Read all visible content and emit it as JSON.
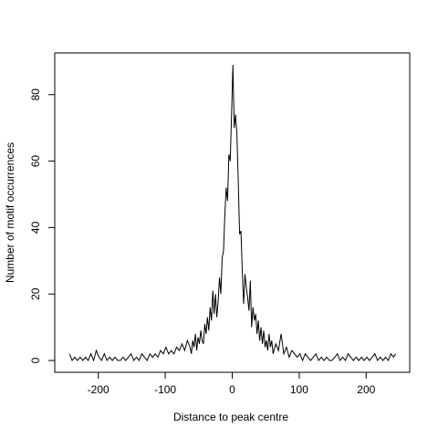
{
  "chart_data": {
    "type": "line",
    "xlabel": "Distance to peak centre",
    "ylabel": "Number of motif occurrences",
    "x": [
      -243,
      -239,
      -235,
      -231,
      -227,
      -223,
      -219,
      -215,
      -211,
      -207,
      -203,
      -199,
      -195,
      -191,
      -187,
      -183,
      -179,
      -175,
      -171,
      -167,
      -163,
      -159,
      -155,
      -151,
      -147,
      -143,
      -139,
      -135,
      -131,
      -127,
      -123,
      -119,
      -115,
      -111,
      -107,
      -103,
      -99,
      -95,
      -91,
      -87,
      -83,
      -79,
      -75,
      -71,
      -67,
      -63,
      -61,
      -59,
      -57,
      -55,
      -53,
      -51,
      -49,
      -47,
      -45,
      -43,
      -41,
      -39,
      -37,
      -35,
      -33,
      -31,
      -29,
      -27,
      -25,
      -23,
      -21,
      -19,
      -17,
      -15,
      -13,
      -11,
      -9,
      -7,
      -5,
      -3,
      -1,
      1,
      3,
      5,
      7,
      9,
      11,
      13,
      15,
      17,
      19,
      21,
      23,
      25,
      27,
      29,
      31,
      33,
      35,
      37,
      39,
      41,
      43,
      45,
      47,
      49,
      51,
      53,
      55,
      57,
      59,
      61,
      65,
      69,
      73,
      77,
      81,
      85,
      89,
      93,
      97,
      101,
      105,
      109,
      113,
      117,
      121,
      125,
      129,
      133,
      137,
      141,
      145,
      149,
      153,
      157,
      161,
      165,
      169,
      173,
      177,
      181,
      185,
      189,
      193,
      197,
      201,
      205,
      209,
      213,
      217,
      221,
      225,
      229,
      233,
      237,
      241,
      244
    ],
    "values": [
      2,
      0,
      1,
      0,
      1,
      0,
      1,
      0,
      2,
      0,
      3,
      1,
      0,
      2,
      0,
      1,
      0,
      1,
      0,
      0,
      1,
      0,
      1,
      2,
      0,
      1,
      0,
      2,
      1,
      0,
      2,
      1,
      2,
      1,
      3,
      2,
      4,
      2,
      3,
      2,
      4,
      3,
      5,
      3,
      6,
      4,
      2,
      6,
      4,
      8,
      3,
      7,
      5,
      9,
      6,
      5,
      11,
      8,
      13,
      9,
      16,
      12,
      21,
      14,
      20,
      13,
      18,
      25,
      20,
      31,
      33,
      44,
      52,
      48,
      62,
      60,
      74,
      89,
      70,
      74,
      68,
      54,
      38,
      39,
      27,
      17,
      26,
      22,
      19,
      15,
      24,
      10,
      16,
      12,
      14,
      8,
      12,
      6,
      10,
      5,
      9,
      4,
      6,
      3,
      8,
      4,
      6,
      2,
      5,
      3,
      8,
      2,
      4,
      1,
      3,
      2,
      1,
      2,
      0,
      2,
      1,
      0,
      1,
      2,
      0,
      1,
      0,
      1,
      0,
      0,
      1,
      2,
      0,
      1,
      0,
      2,
      1,
      0,
      1,
      0,
      1,
      0,
      1,
      0,
      1,
      2,
      0,
      1,
      0,
      1,
      0,
      2,
      1,
      2
    ],
    "color": "#000000",
    "xlim": [
      -265,
      265
    ],
    "xticks": [
      -200,
      -100,
      0,
      100,
      200
    ],
    "ylim": [
      -3.56,
      92.56
    ],
    "yticks": [
      0,
      20,
      40,
      60,
      80
    ]
  }
}
